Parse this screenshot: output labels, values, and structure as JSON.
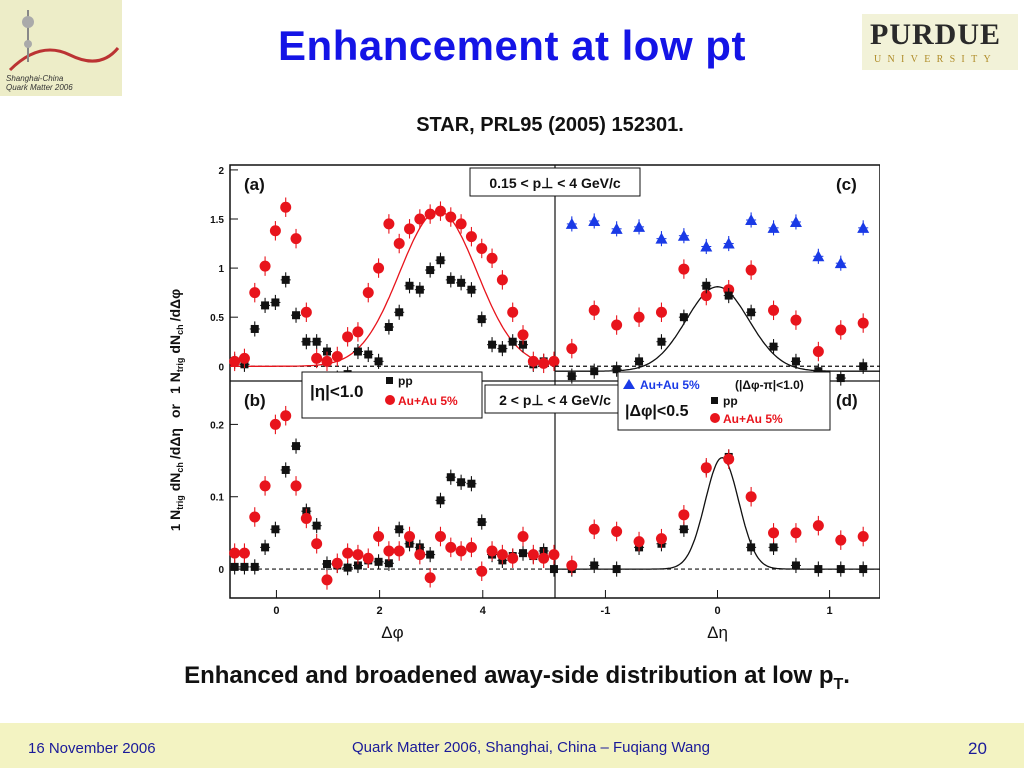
{
  "slide": {
    "title": "Enhancement at low pt",
    "citation": "STAR, PRL95 (2005) 152301.",
    "caption_main": "Enhanced and broadened away-side distribution at low p",
    "caption_sub": "T",
    "caption_end": ".",
    "logo_left": {
      "line1": "Shanghai-China",
      "line2": "Quark Matter 2006"
    },
    "logo_right": {
      "main": "PURDUE",
      "sub": "UNIVERSITY"
    },
    "footer": {
      "date": "16 November 2006",
      "center": "Quark Matter 2006, Shanghai, China – Fuqiang Wang",
      "page": "20"
    }
  },
  "colors": {
    "title": "#1414e6",
    "footer_bg": "#f3f3c2",
    "footer_text": "#1a1a99",
    "red": "#e8141c",
    "black": "#111111",
    "blue": "#1a3ae6"
  },
  "chart_data": [
    {
      "panel": "(a)",
      "type": "scatter",
      "x_variable": "Δφ",
      "xlim": [
        -0.9,
        5.4
      ],
      "ylim": [
        -0.15,
        2.05
      ],
      "yticks": [
        0,
        0.5,
        1,
        1.5,
        2
      ],
      "ytick_labels": [
        "0",
        "0.5",
        "1",
        "1.5",
        "2"
      ],
      "cut_label": "0.15 < p⊥ < 4 GeV/c",
      "series": [
        {
          "name": "pp",
          "marker": "square",
          "color": "#111111",
          "x": [
            -0.81,
            -0.62,
            -0.42,
            -0.22,
            -0.02,
            0.18,
            0.38,
            0.58,
            0.78,
            0.98,
            1.18,
            1.38,
            1.58,
            1.78,
            1.98,
            2.18,
            2.38,
            2.58,
            2.78,
            2.98,
            3.18,
            3.38,
            3.58,
            3.78,
            3.98,
            4.18,
            4.38,
            4.58,
            4.78,
            4.98,
            5.18,
            5.38
          ],
          "y": [
            0.05,
            0.02,
            0.38,
            0.62,
            0.65,
            0.88,
            0.52,
            0.25,
            0.25,
            0.15,
            -0.12,
            -0.08,
            0.15,
            0.12,
            0.05,
            0.4,
            0.55,
            0.82,
            0.78,
            0.98,
            1.08,
            0.88,
            0.85,
            0.78,
            0.48,
            0.22,
            0.18,
            0.25,
            0.22,
            0.02,
            0.05,
            0.05
          ]
        },
        {
          "name": "Au+Au 5%",
          "marker": "circle",
          "color": "#e8141c",
          "x": [
            -0.81,
            -0.62,
            -0.42,
            -0.22,
            -0.02,
            0.18,
            0.38,
            0.58,
            0.78,
            0.98,
            1.18,
            1.38,
            1.58,
            1.78,
            1.98,
            2.18,
            2.38,
            2.58,
            2.78,
            2.98,
            3.18,
            3.38,
            3.58,
            3.78,
            3.98,
            4.18,
            4.38,
            4.58,
            4.78,
            4.98,
            5.18,
            5.38
          ],
          "y": [
            0.05,
            0.08,
            0.75,
            1.02,
            1.38,
            1.62,
            1.3,
            0.55,
            0.08,
            0.05,
            0.1,
            0.3,
            0.35,
            0.75,
            1.0,
            1.45,
            1.25,
            1.4,
            1.5,
            1.55,
            1.58,
            1.52,
            1.45,
            1.32,
            1.2,
            1.1,
            0.88,
            0.55,
            0.32,
            0.05,
            0.03,
            0.05
          ]
        }
      ]
    },
    {
      "panel": "(b)",
      "type": "scatter",
      "x_variable": "Δφ",
      "xlim": [
        -0.9,
        5.4
      ],
      "ylim": [
        -0.04,
        0.26
      ],
      "yticks": [
        0,
        0.1,
        0.2
      ],
      "ytick_labels": [
        "0",
        "0.1",
        "0.2"
      ],
      "cut_label": "2 < p⊥ < 4 GeV/c",
      "xticks": [
        0,
        2,
        4
      ],
      "xtick_labels": [
        "0",
        "2",
        "4"
      ],
      "legend": {
        "eta_cut": "|η|<1.0",
        "entries": [
          "pp",
          "Au+Au 5%"
        ]
      },
      "series": [
        {
          "name": "pp",
          "marker": "square",
          "color": "#111111",
          "x": [
            -0.81,
            -0.62,
            -0.42,
            -0.22,
            -0.02,
            0.18,
            0.38,
            0.58,
            0.78,
            0.98,
            1.18,
            1.38,
            1.58,
            1.78,
            1.98,
            2.18,
            2.38,
            2.58,
            2.78,
            2.98,
            3.18,
            3.38,
            3.58,
            3.78,
            3.98,
            4.18,
            4.38,
            4.58,
            4.78,
            4.98,
            5.18,
            5.38
          ],
          "y": [
            0.003,
            0.003,
            0.003,
            0.03,
            0.055,
            0.137,
            0.17,
            0.08,
            0.06,
            0.007,
            0.005,
            0.002,
            0.005,
            0.012,
            0.01,
            0.008,
            0.055,
            0.035,
            0.03,
            0.02,
            0.095,
            0.127,
            0.12,
            0.118,
            0.065,
            0.02,
            0.012,
            0.018,
            0.022,
            0.018,
            0.025,
            0.0
          ]
        },
        {
          "name": "Au+Au 5%",
          "marker": "circle",
          "color": "#e8141c",
          "x": [
            -0.81,
            -0.62,
            -0.42,
            -0.22,
            -0.02,
            0.18,
            0.38,
            0.58,
            0.78,
            0.98,
            1.18,
            1.38,
            1.58,
            1.78,
            1.98,
            2.18,
            2.38,
            2.58,
            2.78,
            2.98,
            3.18,
            3.38,
            3.58,
            3.78,
            3.98,
            4.18,
            4.38,
            4.58,
            4.78,
            4.98,
            5.18,
            5.38
          ],
          "y": [
            0.022,
            0.022,
            0.072,
            0.115,
            0.2,
            0.212,
            0.115,
            0.07,
            0.035,
            -0.015,
            0.008,
            0.022,
            0.02,
            0.015,
            0.045,
            0.025,
            0.025,
            0.045,
            0.02,
            -0.012,
            0.045,
            0.03,
            0.025,
            0.03,
            -0.003,
            0.025,
            0.02,
            0.015,
            0.045,
            0.02,
            0.015,
            0.02
          ]
        }
      ]
    },
    {
      "panel": "(c)",
      "type": "scatter",
      "x_variable": "Δη",
      "xlim": [
        -1.45,
        1.45
      ],
      "ylim": [
        -0.15,
        2.05
      ],
      "series": [
        {
          "name": "Au+Au 5%",
          "marker": "triangle",
          "color": "#1a3ae6",
          "x": [
            -1.3,
            -1.1,
            -0.9,
            -0.7,
            -0.5,
            -0.3,
            -0.1,
            0.1,
            0.3,
            0.5,
            0.7,
            0.9,
            1.1,
            1.3
          ],
          "y": [
            1.45,
            1.48,
            1.4,
            1.42,
            1.3,
            1.33,
            1.22,
            1.25,
            1.49,
            1.41,
            1.47,
            1.12,
            1.05,
            1.41
          ]
        },
        {
          "name": "Au+Au 5%",
          "marker": "circle",
          "color": "#e8141c",
          "x": [
            -1.3,
            -1.1,
            -0.9,
            -0.7,
            -0.5,
            -0.3,
            -0.1,
            0.1,
            0.3,
            0.5,
            0.7,
            0.9,
            1.1,
            1.3
          ],
          "y": [
            0.18,
            0.57,
            0.42,
            0.5,
            0.55,
            0.99,
            0.72,
            0.78,
            0.98,
            0.57,
            0.47,
            0.15,
            0.37,
            0.44
          ]
        },
        {
          "name": "pp",
          "marker": "square",
          "color": "#111111",
          "x": [
            -1.3,
            -1.1,
            -0.9,
            -0.7,
            -0.5,
            -0.3,
            -0.1,
            0.1,
            0.3,
            0.5,
            0.7,
            0.9,
            1.1,
            1.3
          ],
          "y": [
            -0.1,
            -0.05,
            -0.03,
            0.05,
            0.25,
            0.5,
            0.82,
            0.72,
            0.55,
            0.2,
            0.05,
            -0.05,
            -0.12,
            0.0
          ]
        }
      ]
    },
    {
      "panel": "(d)",
      "type": "scatter",
      "x_variable": "Δη",
      "xlim": [
        -1.45,
        1.45
      ],
      "ylim": [
        -0.04,
        0.26
      ],
      "xticks": [
        -1,
        0,
        1
      ],
      "xtick_labels": [
        "-1",
        "0",
        "1"
      ],
      "legend": {
        "phi_cut": "(|Δφ-π|<1.0)",
        "eta_cut": "|Δφ|<0.5",
        "entries": [
          "Au+Au 5%",
          "pp",
          "Au+Au 5%"
        ]
      },
      "series": [
        {
          "name": "pp",
          "marker": "square",
          "color": "#111111",
          "x": [
            -1.3,
            -1.1,
            -0.9,
            -0.7,
            -0.5,
            -0.3,
            -0.1,
            0.1,
            0.3,
            0.5,
            0.7,
            0.9,
            1.1,
            1.3
          ],
          "y": [
            0.0,
            0.005,
            0.0,
            0.03,
            0.035,
            0.055,
            0.14,
            0.155,
            0.03,
            0.03,
            0.005,
            0.0,
            0.0,
            0.0
          ]
        },
        {
          "name": "Au+Au 5%",
          "marker": "circle",
          "color": "#e8141c",
          "x": [
            -1.3,
            -1.1,
            -0.9,
            -0.7,
            -0.5,
            -0.3,
            -0.1,
            0.1,
            0.3,
            0.5,
            0.7,
            0.9,
            1.1,
            1.3
          ],
          "y": [
            0.005,
            0.055,
            0.052,
            0.038,
            0.042,
            0.075,
            0.14,
            0.152,
            0.1,
            0.05,
            0.05,
            0.06,
            0.04,
            0.045
          ]
        }
      ]
    }
  ]
}
